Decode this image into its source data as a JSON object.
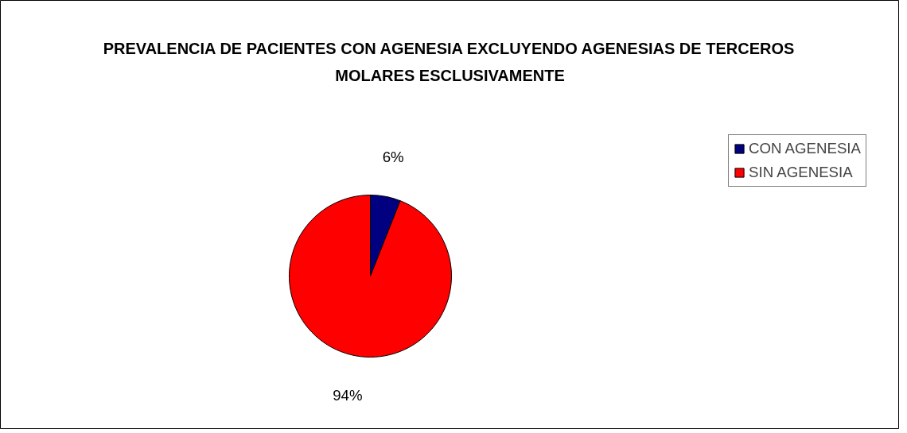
{
  "chart_data": {
    "type": "pie",
    "title": "PREVALENCIA DE PACIENTES CON AGENESIA EXCLUYENDO AGENESIAS DE TERCEROS MOLARES ESCLUSIVAMENTE",
    "categories": [
      "CON AGENESIA",
      "SIN AGENESIA"
    ],
    "values": [
      6,
      94
    ],
    "colors": [
      "#000080",
      "#ff0000"
    ],
    "value_labels": [
      "6%",
      "94%"
    ],
    "legend": "right"
  }
}
